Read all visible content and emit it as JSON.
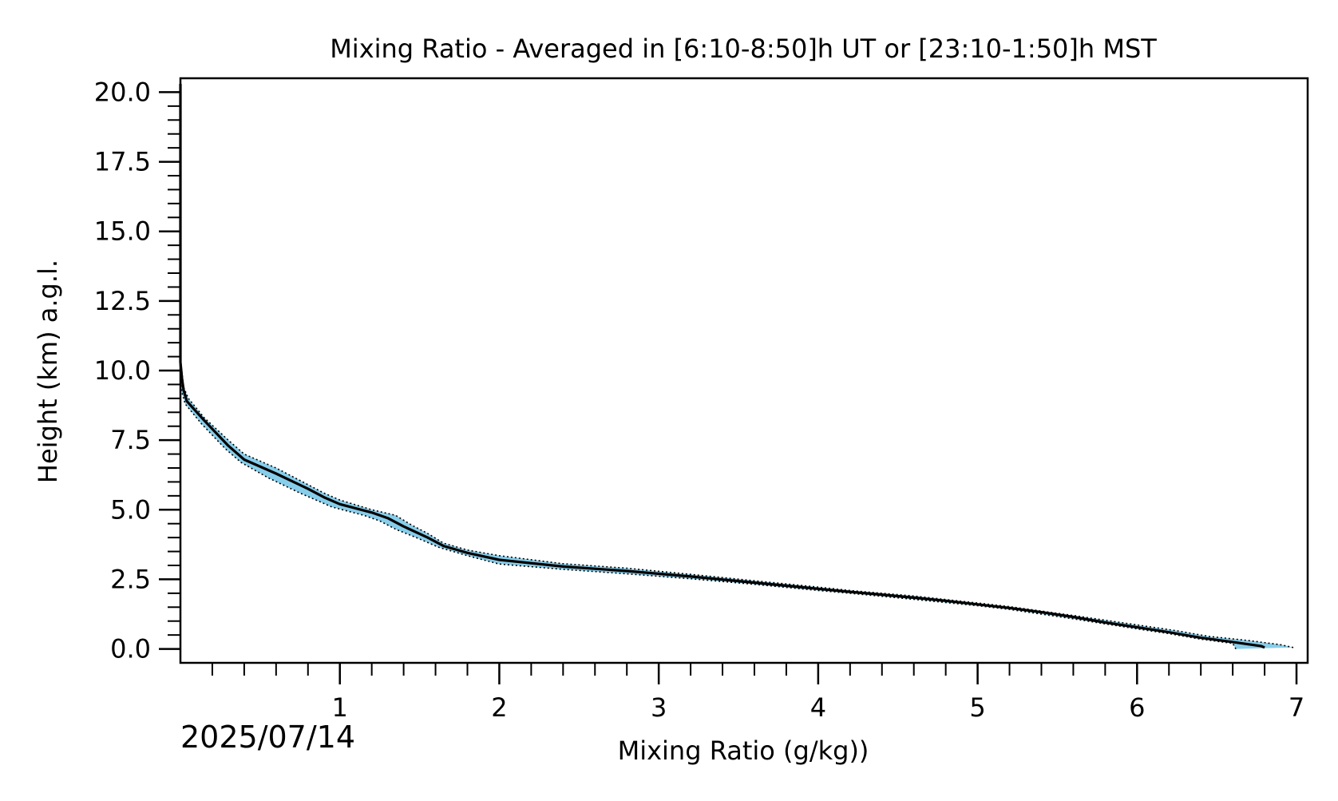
{
  "chart_data": {
    "type": "line",
    "title": "Mixing Ratio - Averaged in [6:10-8:50]h UT or [23:10-1:50]h MST",
    "xlabel": "Mixing Ratio (g/kg))",
    "ylabel": "Height (km) a.g.l.",
    "date_label": "2025/07/14",
    "xlim": [
      0,
      7.07
    ],
    "ylim": [
      -0.5,
      20.5
    ],
    "x_ticks": [
      1,
      2,
      3,
      4,
      5,
      6,
      7
    ],
    "x_tick_labels": [
      "1",
      "2",
      "3",
      "4",
      "5",
      "6",
      "7"
    ],
    "x_minor_step": 0.2,
    "y_ticks": [
      0,
      2.5,
      5,
      7.5,
      10,
      12.5,
      15,
      17.5,
      20
    ],
    "y_tick_labels": [
      "0.0",
      "2.5",
      "5.0",
      "7.5",
      "10.0",
      "12.5",
      "15.0",
      "17.5",
      "20.0"
    ],
    "y_minor_step": 0.5,
    "grid": false,
    "colors": {
      "line": "#000000",
      "band": "#87ceeb",
      "bounds": "#000000"
    },
    "series": [
      {
        "role": "mean",
        "points": [
          [
            6.8,
            0.05
          ],
          [
            6.78,
            0.1
          ],
          [
            6.6,
            0.25
          ],
          [
            6.4,
            0.4
          ],
          [
            6.2,
            0.6
          ],
          [
            6.0,
            0.78
          ],
          [
            5.8,
            0.95
          ],
          [
            5.6,
            1.15
          ],
          [
            5.4,
            1.32
          ],
          [
            5.2,
            1.47
          ],
          [
            5.0,
            1.6
          ],
          [
            4.8,
            1.73
          ],
          [
            4.6,
            1.84
          ],
          [
            4.4,
            1.95
          ],
          [
            4.2,
            2.05
          ],
          [
            4.0,
            2.16
          ],
          [
            3.6,
            2.38
          ],
          [
            3.2,
            2.6
          ],
          [
            2.8,
            2.8
          ],
          [
            2.4,
            2.96
          ],
          [
            2.0,
            3.2
          ],
          [
            1.8,
            3.45
          ],
          [
            1.65,
            3.7
          ],
          [
            1.55,
            4.0
          ],
          [
            1.4,
            4.4
          ],
          [
            1.3,
            4.7
          ],
          [
            1.2,
            4.9
          ],
          [
            1.0,
            5.2
          ],
          [
            0.9,
            5.45
          ],
          [
            0.8,
            5.75
          ],
          [
            0.6,
            6.3
          ],
          [
            0.4,
            6.8
          ],
          [
            0.3,
            7.3
          ],
          [
            0.15,
            8.2
          ],
          [
            0.04,
            8.9
          ],
          [
            0.02,
            9.3
          ],
          [
            0.01,
            9.7
          ],
          [
            0.0,
            10.3
          ],
          [
            0.0,
            12
          ],
          [
            0.0,
            15
          ],
          [
            0.0,
            20.3
          ]
        ]
      },
      {
        "role": "upper",
        "points": [
          [
            6.98,
            0.05
          ],
          [
            6.9,
            0.15
          ],
          [
            6.7,
            0.3
          ],
          [
            6.45,
            0.45
          ],
          [
            6.25,
            0.65
          ],
          [
            6.05,
            0.82
          ],
          [
            5.6,
            1.2
          ],
          [
            5.2,
            1.52
          ],
          [
            5.0,
            1.65
          ],
          [
            4.6,
            1.9
          ],
          [
            4.2,
            2.1
          ],
          [
            4.0,
            2.22
          ],
          [
            3.6,
            2.45
          ],
          [
            3.2,
            2.68
          ],
          [
            2.8,
            2.9
          ],
          [
            2.4,
            3.06
          ],
          [
            2.0,
            3.35
          ],
          [
            1.8,
            3.55
          ],
          [
            1.65,
            3.8
          ],
          [
            1.55,
            4.15
          ],
          [
            1.45,
            4.45
          ],
          [
            1.35,
            4.8
          ],
          [
            1.2,
            5.0
          ],
          [
            1.0,
            5.35
          ],
          [
            0.9,
            5.6
          ],
          [
            0.8,
            5.9
          ],
          [
            0.6,
            6.5
          ],
          [
            0.4,
            7.0
          ],
          [
            0.3,
            7.5
          ],
          [
            0.15,
            8.3
          ],
          [
            0.05,
            9.0
          ],
          [
            0.02,
            9.4
          ],
          [
            0.0,
            10.4
          ]
        ]
      },
      {
        "role": "lower",
        "points": [
          [
            6.62,
            0.0
          ],
          [
            6.6,
            0.2
          ],
          [
            6.4,
            0.35
          ],
          [
            6.2,
            0.55
          ],
          [
            6.0,
            0.72
          ],
          [
            5.6,
            1.08
          ],
          [
            5.2,
            1.42
          ],
          [
            5.0,
            1.55
          ],
          [
            4.6,
            1.78
          ],
          [
            4.2,
            2.0
          ],
          [
            4.0,
            2.1
          ],
          [
            3.6,
            2.32
          ],
          [
            3.2,
            2.52
          ],
          [
            2.8,
            2.7
          ],
          [
            2.4,
            2.86
          ],
          [
            2.0,
            3.05
          ],
          [
            1.8,
            3.35
          ],
          [
            1.62,
            3.65
          ],
          [
            1.5,
            3.95
          ],
          [
            1.35,
            4.3
          ],
          [
            1.25,
            4.6
          ],
          [
            1.15,
            4.8
          ],
          [
            0.95,
            5.1
          ],
          [
            0.85,
            5.35
          ],
          [
            0.75,
            5.6
          ],
          [
            0.55,
            6.15
          ],
          [
            0.38,
            6.7
          ],
          [
            0.28,
            7.2
          ],
          [
            0.13,
            8.1
          ],
          [
            0.03,
            8.8
          ],
          [
            0.01,
            9.2
          ],
          [
            0.0,
            9.6
          ]
        ]
      }
    ]
  }
}
